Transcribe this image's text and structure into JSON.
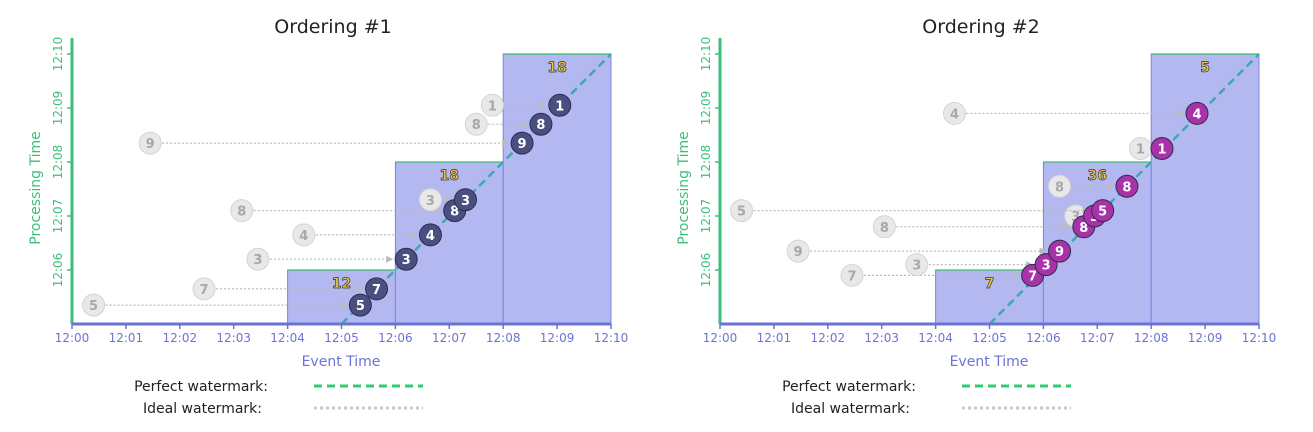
{
  "legend": {
    "perfect_label": "Perfect watermark:",
    "ideal_label": "Ideal watermark:",
    "perfect_color": "#2ecc71",
    "ideal_color": "#c8c8c8"
  },
  "colors": {
    "pane_fill": "#b4b8f0",
    "pane_stroke": "#7b83e0",
    "event_ordering1": "#4a4f80",
    "event_ordering2": "#a832a8",
    "ghost_fill": "#e8e8e8",
    "x_axis": "#6a73d6",
    "y_axis": "#3bbf79"
  },
  "chart_data": [
    {
      "type": "scatter",
      "title": "Ordering #1",
      "xlabel": "Event Time",
      "ylabel": "Processing Time",
      "x_ticks": [
        "12:00",
        "12:01",
        "12:02",
        "12:03",
        "12:04",
        "12:05",
        "12:06",
        "12:07",
        "12:08",
        "12:09",
        "12:10"
      ],
      "y_ticks": [
        "12:06",
        "12:07",
        "12:08",
        "12:09",
        "12:10"
      ],
      "xlim": [
        0,
        10
      ],
      "ylim": [
        5,
        10
      ],
      "perfect_watermark": [
        [
          5,
          5
        ],
        [
          10,
          10
        ]
      ],
      "ideal_watermark": [
        [
          5,
          5
        ],
        [
          10,
          10
        ]
      ],
      "panes": [
        {
          "x0": 4,
          "x1": 6,
          "y_top": 6,
          "sum": "12"
        },
        {
          "x0": 6,
          "x1": 8,
          "y_top": 8,
          "sum": "18"
        },
        {
          "x0": 8,
          "x1": 10,
          "y_top": 10,
          "sum": "18"
        }
      ],
      "events": [
        {
          "value": "5",
          "event_time": 5.35,
          "proc_time": 5.35,
          "ghost_x": 0.4
        },
        {
          "value": "7",
          "event_time": 5.65,
          "proc_time": 5.65,
          "ghost_x": 2.45
        },
        {
          "value": "3",
          "event_time": 6.2,
          "proc_time": 6.2,
          "ghost_x": 3.45
        },
        {
          "value": "4",
          "event_time": 6.65,
          "proc_time": 6.65,
          "ghost_x": 4.3
        },
        {
          "value": "8",
          "event_time": 7.1,
          "proc_time": 7.1,
          "ghost_x": 3.15
        },
        {
          "value": "3",
          "event_time": 7.3,
          "proc_time": 7.3,
          "ghost_x": 6.65
        },
        {
          "value": "9",
          "event_time": 8.35,
          "proc_time": 8.35,
          "ghost_x": 1.45
        },
        {
          "value": "8",
          "event_time": 8.7,
          "proc_time": 8.7,
          "ghost_x": 7.5
        },
        {
          "value": "1",
          "event_time": 9.05,
          "proc_time": 9.05,
          "ghost_x": 7.8
        }
      ]
    },
    {
      "type": "scatter",
      "title": "Ordering #2",
      "xlabel": "Event Time",
      "ylabel": "Processing Time",
      "x_ticks": [
        "12:00",
        "12:01",
        "12:02",
        "12:03",
        "12:04",
        "12:05",
        "12:06",
        "12:07",
        "12:08",
        "12:09",
        "12:10"
      ],
      "y_ticks": [
        "12:06",
        "12:07",
        "12:08",
        "12:09",
        "12:10"
      ],
      "xlim": [
        0,
        10
      ],
      "ylim": [
        5,
        10
      ],
      "perfect_watermark": [
        [
          5,
          5
        ],
        [
          10,
          10
        ]
      ],
      "ideal_watermark": [
        [
          5,
          5
        ],
        [
          10,
          10
        ]
      ],
      "panes": [
        {
          "x0": 4,
          "x1": 6,
          "y_top": 6,
          "sum": "7"
        },
        {
          "x0": 6,
          "x1": 8,
          "y_top": 8,
          "sum": "36"
        },
        {
          "x0": 8,
          "x1": 10,
          "y_top": 10,
          "sum": "5"
        }
      ],
      "events": [
        {
          "value": "7",
          "event_time": 5.8,
          "proc_time": 5.9,
          "ghost_x": 2.45
        },
        {
          "value": "3",
          "event_time": 6.05,
          "proc_time": 6.1,
          "ghost_x": 3.65
        },
        {
          "value": "9",
          "event_time": 6.3,
          "proc_time": 6.35,
          "ghost_x": 1.45
        },
        {
          "value": "8",
          "event_time": 6.75,
          "proc_time": 6.8,
          "ghost_x": 3.05
        },
        {
          "value": "3",
          "event_time": 6.95,
          "proc_time": 7.0,
          "ghost_x": 6.6
        },
        {
          "value": "5",
          "event_time": 7.1,
          "proc_time": 7.1,
          "ghost_x": 0.4
        },
        {
          "value": "8",
          "event_time": 7.55,
          "proc_time": 7.55,
          "ghost_x": 6.3
        },
        {
          "value": "1",
          "event_time": 8.2,
          "proc_time": 8.25,
          "ghost_x": 7.8
        },
        {
          "value": "4",
          "event_time": 8.85,
          "proc_time": 8.9,
          "ghost_x": 4.35
        }
      ]
    }
  ]
}
